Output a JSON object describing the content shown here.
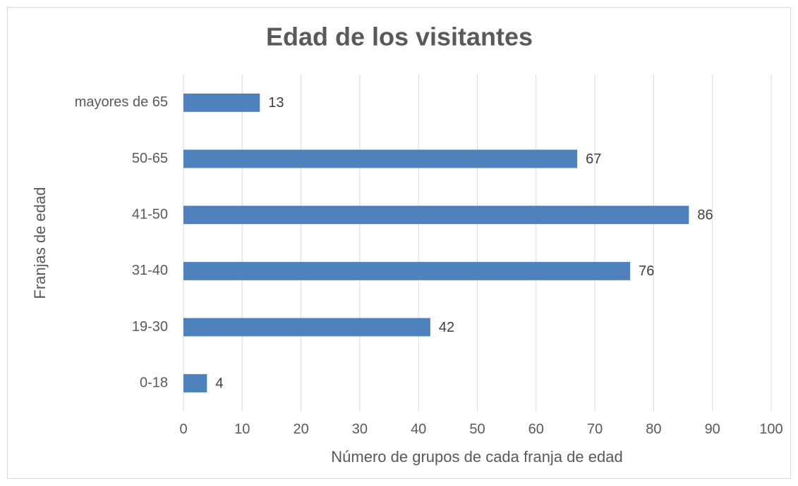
{
  "chart_data": {
    "type": "bar",
    "orientation": "horizontal",
    "title": "Edad de los visitantes",
    "x_label": "Número de grupos de cada franja de edad",
    "y_label": "Franjas de edad",
    "categories": [
      "0-18",
      "19-30",
      "31-40",
      "41-50",
      "50-65",
      "mayores de 65"
    ],
    "values": [
      4,
      42,
      76,
      86,
      67,
      13
    ],
    "color": "#4f81bd",
    "xlim": [
      0,
      100
    ],
    "xticks": [
      0,
      10,
      20,
      30,
      40,
      50,
      60,
      70,
      80,
      90,
      100
    ],
    "grid": true
  }
}
